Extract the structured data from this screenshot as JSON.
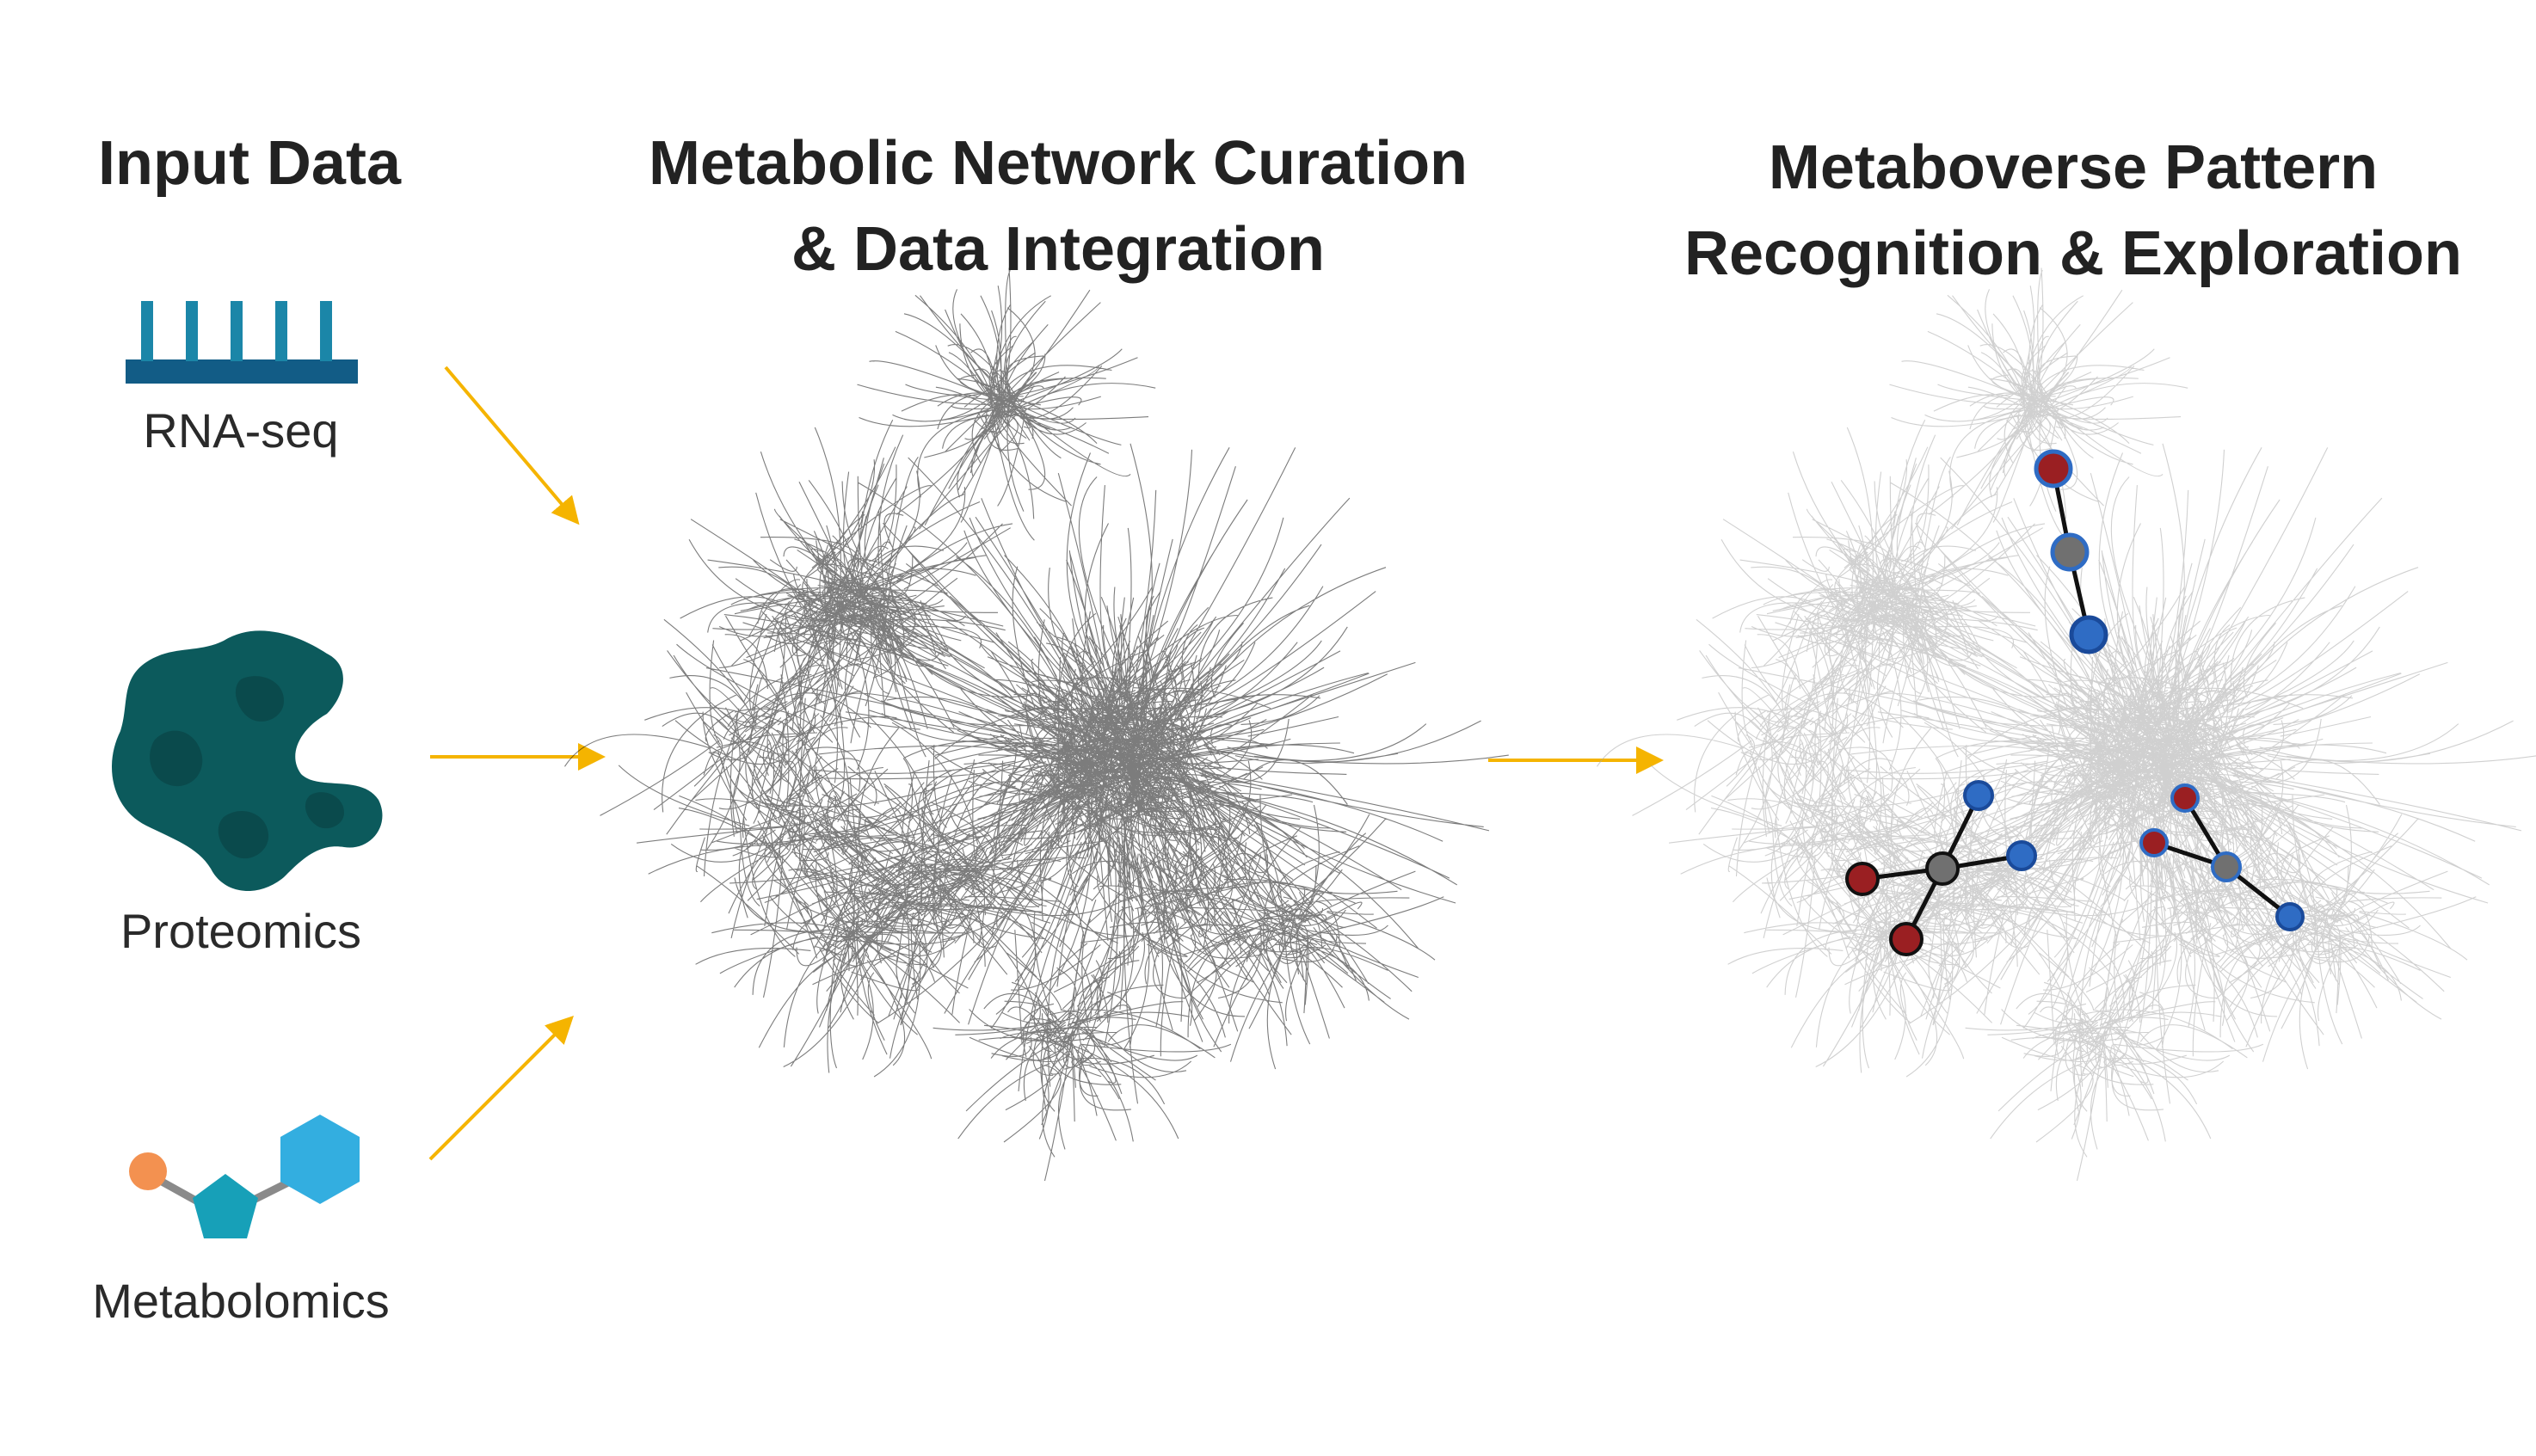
{
  "headings": {
    "input": "Input Data",
    "curation_line1": "Metabolic Network Curation",
    "curation_line2": "& Data Integration",
    "pattern_line1": "Metaboverse Pattern",
    "pattern_line2": "Recognition & Exploration"
  },
  "inputs": {
    "rnaseq": "RNA-seq",
    "proteomics": "Proteomics",
    "metabolomics": "Metabolomics"
  },
  "colors": {
    "arrow": "#f5b400",
    "rna_icon": "#1b86a8",
    "rna_bar": "#125c86",
    "protein": "#0c5a5c",
    "protein_shade": "#0a4a4c",
    "metab_orange": "#f39150",
    "metab_pentagon": "#17a0b8",
    "metab_hexagon": "#33aee0",
    "network_dark": "#111111",
    "network_grey": "#a9a9a9",
    "node_red": "#9a1f22",
    "node_blue": "#2f6cc4",
    "node_grey": "#707070"
  },
  "icons": {
    "rnaseq": "rna-seq-comb-icon",
    "proteomics": "protein-blob-icon",
    "metabolomics": "molecule-icon"
  }
}
